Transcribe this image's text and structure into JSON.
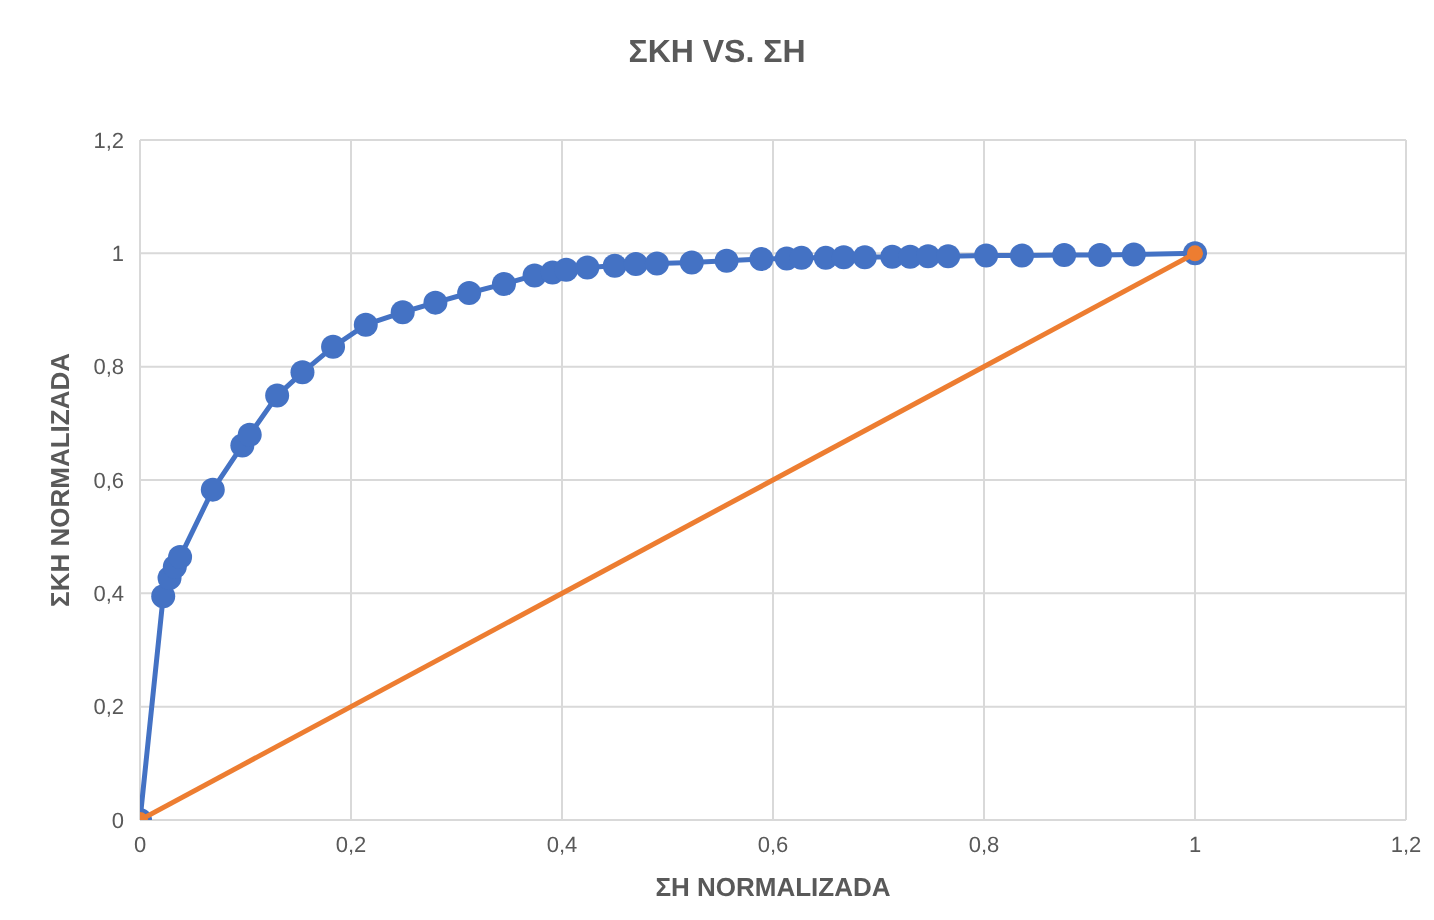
{
  "chart_data": {
    "type": "line",
    "title": "ΣΚΗ VS. ΣΗ",
    "xlabel": "ΣΗ NORMALIZADA",
    "ylabel": "ΣΚΗ NORMALIZADA",
    "series": [
      {
        "color": "#4472c4",
        "x": [
          0,
          0.022,
          0.028,
          0.033,
          0.038,
          0.069,
          0.097,
          0.104,
          0.13,
          0.154,
          0.183,
          0.214,
          0.249,
          0.28,
          0.312,
          0.345,
          0.374,
          0.391,
          0.404,
          0.424,
          0.45,
          0.47,
          0.49,
          0.523,
          0.556,
          0.589,
          0.613,
          0.627,
          0.65,
          0.667,
          0.687,
          0.713,
          0.73,
          0.747,
          0.766,
          0.802,
          0.836,
          0.876,
          0.91,
          0.942,
          1
        ],
        "values": [
          0,
          0.395,
          0.427,
          0.447,
          0.464,
          0.583,
          0.661,
          0.68,
          0.749,
          0.79,
          0.835,
          0.874,
          0.896,
          0.913,
          0.93,
          0.946,
          0.961,
          0.966,
          0.971,
          0.975,
          0.978,
          0.981,
          0.982,
          0.984,
          0.987,
          0.99,
          0.991,
          0.992,
          0.992,
          0.993,
          0.993,
          0.994,
          0.994,
          0.995,
          0.995,
          0.996,
          0.996,
          0.997,
          0.997,
          0.998,
          1
        ]
      },
      {
        "color": "#ed7d31",
        "x": [
          0,
          1
        ],
        "values": [
          0,
          1
        ]
      }
    ],
    "xlim": [
      0,
      1.2
    ],
    "ylim": [
      0,
      1.2
    ],
    "xticks": [
      0,
      {
        "value": 0.2,
        "label": "0,2"
      },
      {
        "value": 0.4,
        "label": "0,4"
      },
      {
        "value": 0.6,
        "label": "0,6"
      },
      {
        "value": 0.8,
        "label": "0,8"
      },
      1,
      {
        "value": 1.2,
        "label": "1,2"
      }
    ],
    "yticks": [
      0,
      {
        "value": 0.2,
        "label": "0,2"
      },
      {
        "value": 0.4,
        "label": "0,4"
      },
      {
        "value": 0.6,
        "label": "0,6"
      },
      {
        "value": 0.8,
        "label": "0,8"
      },
      1,
      {
        "value": 1.2,
        "label": "1,2"
      }
    ],
    "grid": true,
    "marker": "circle",
    "line_style": "solid"
  }
}
